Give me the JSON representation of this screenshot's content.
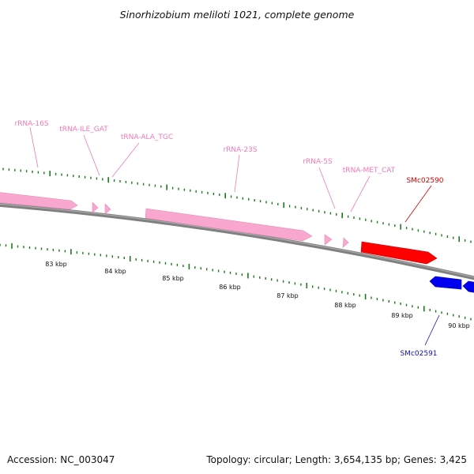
{
  "title": "Sinorhizobium meliloti 1021, complete genome",
  "footer": {
    "accession": "Accession: NC_003047",
    "summary": "Topology: circular; Length: 3,654,135 bp; Genes: 3,425"
  },
  "colors": {
    "rrna": "#f9a7cf",
    "rrna_label": "#f07ab8",
    "forward_gene": "#ff0000",
    "forward_label": "#d80000",
    "reverse_gene": "#0000ee",
    "reverse_label": "#1010c0",
    "backbone": "#808080",
    "ticks": "#1a7a1a"
  },
  "features": [
    {
      "label": "rRNA-16S"
    },
    {
      "label": "tRNA-ILE_GAT"
    },
    {
      "label": "tRNA-ALA_TGC"
    },
    {
      "label": "rRNA-23S"
    },
    {
      "label": "rRNA-5S"
    },
    {
      "label": "tRNA-MET_CAT"
    },
    {
      "label": "SMc02590"
    },
    {
      "label": "SMc02591"
    }
  ],
  "scale_labels": [
    "83 kbp",
    "84 kbp",
    "85 kbp",
    "86 kbp",
    "87 kbp",
    "88 kbp",
    "89 kbp",
    "90 kbp"
  ]
}
